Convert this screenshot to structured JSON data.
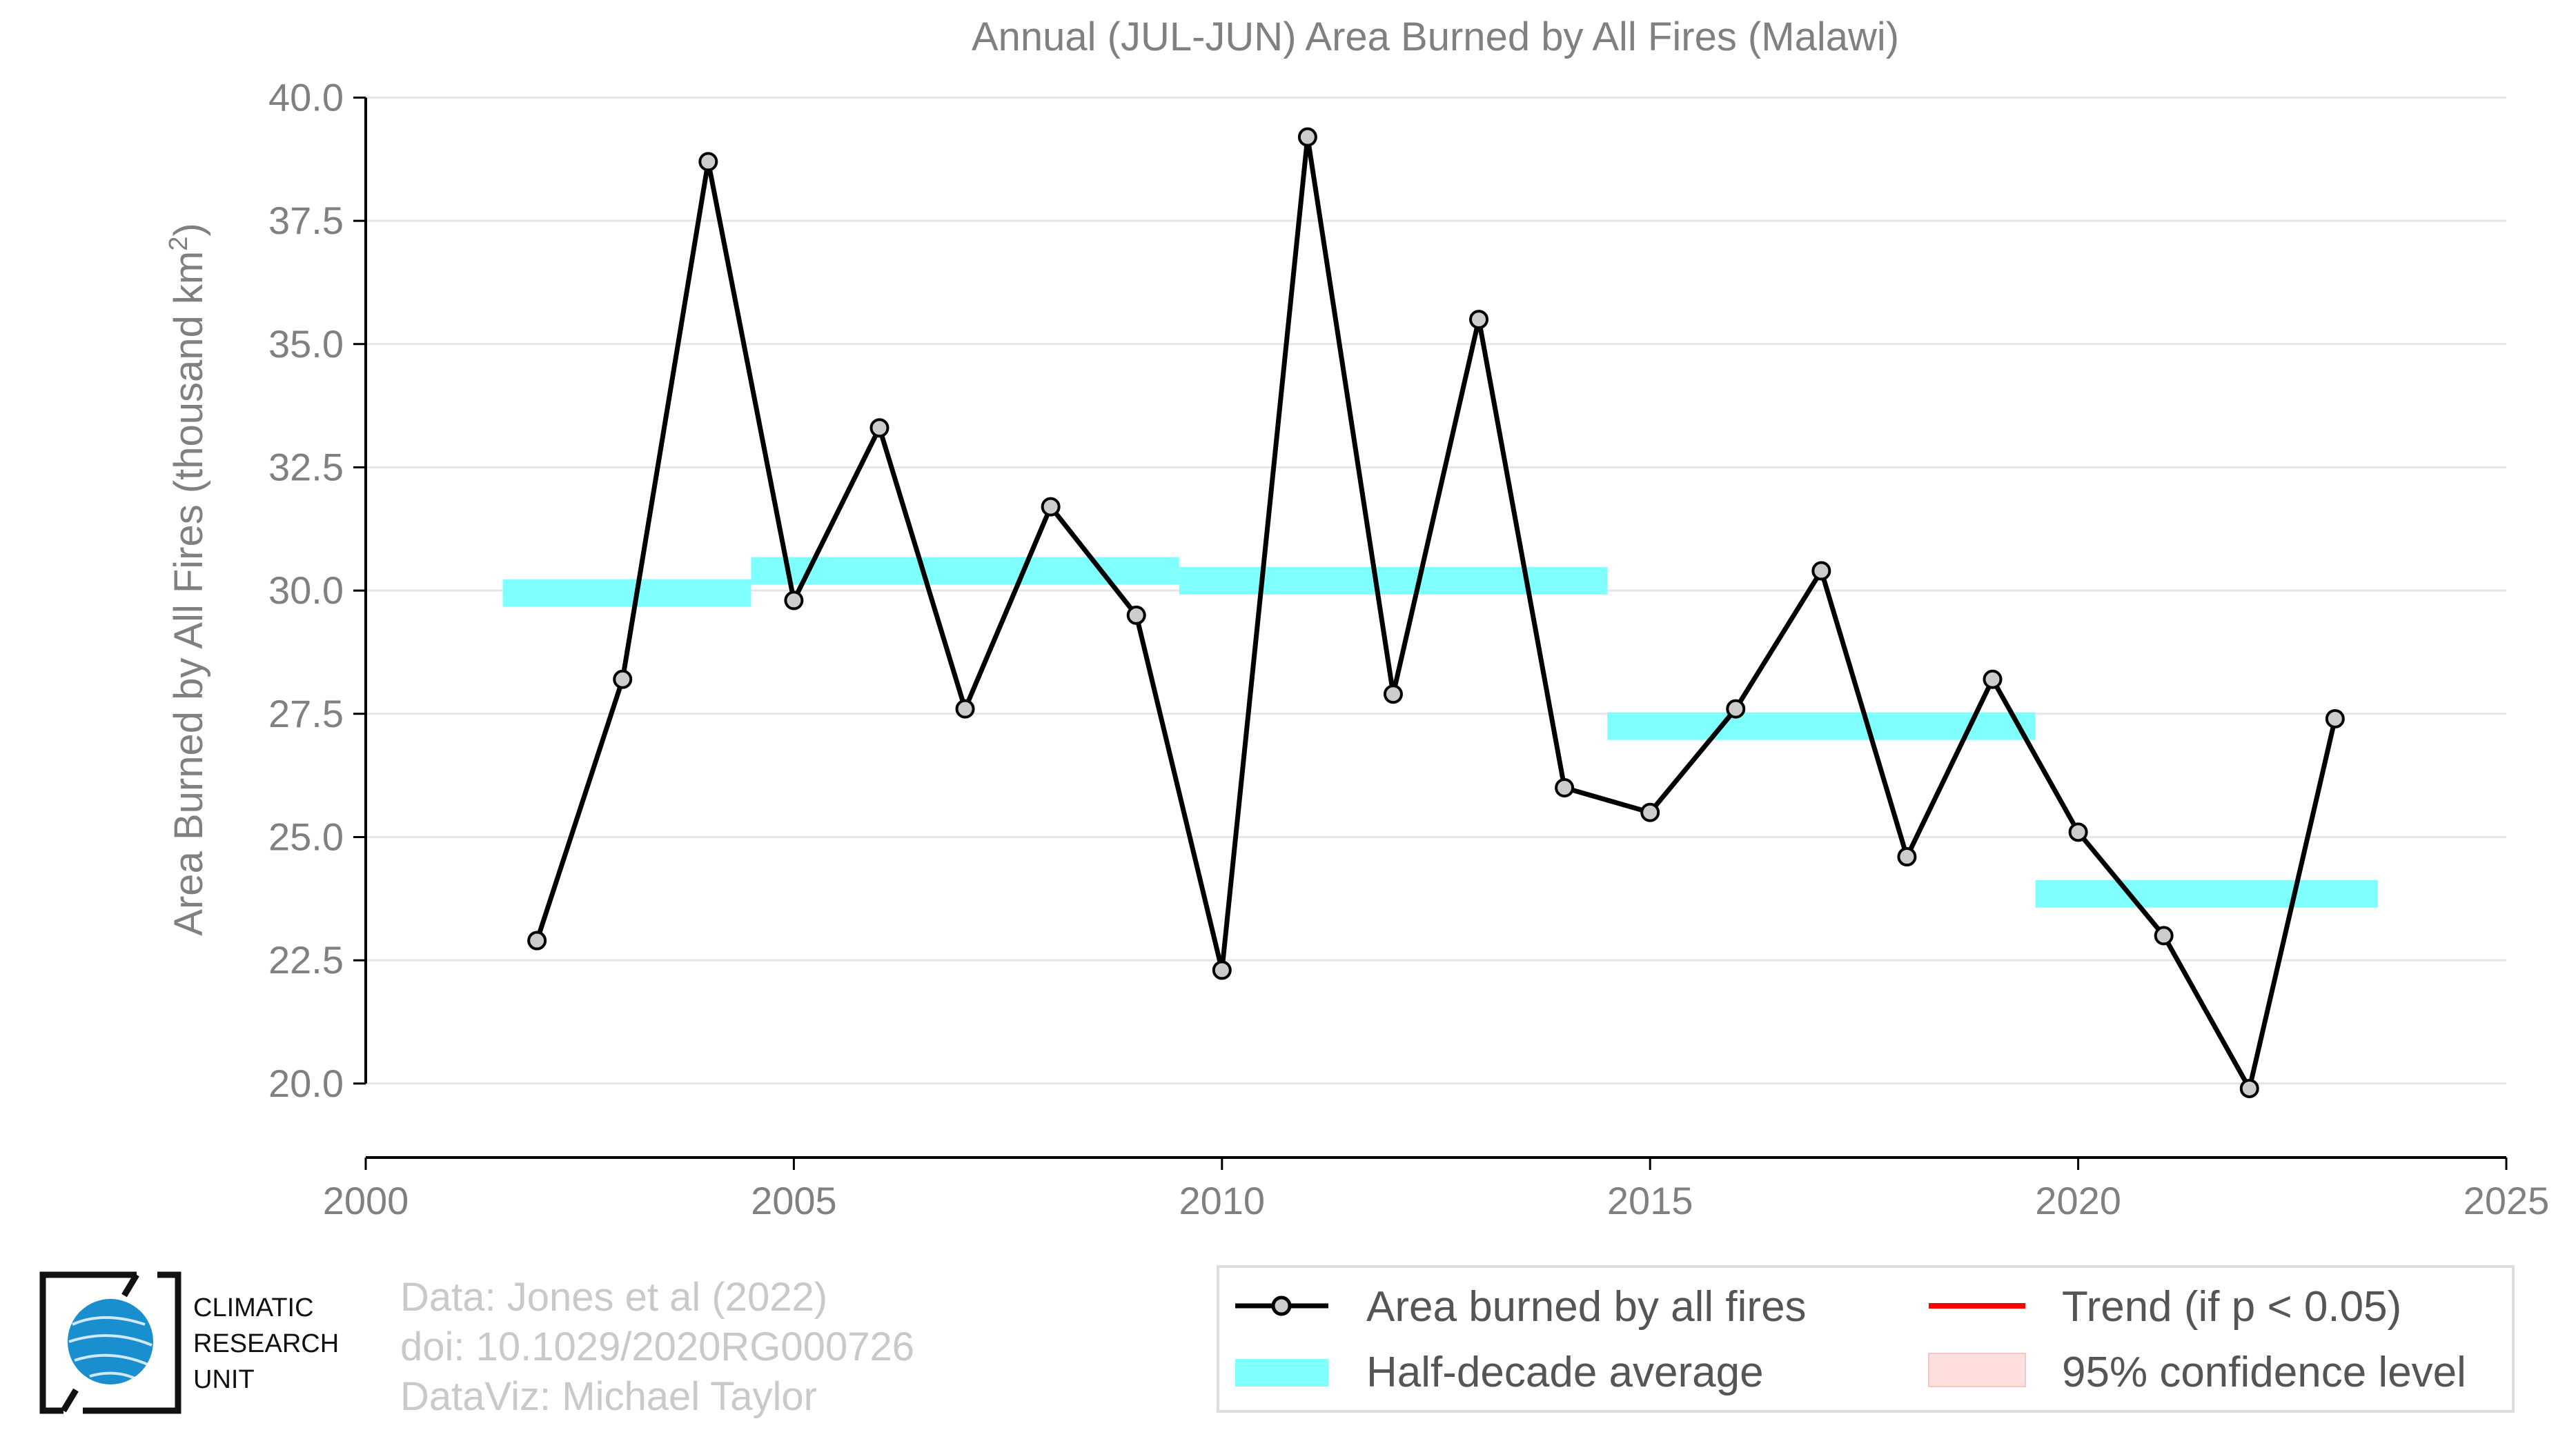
{
  "chart_data": {
    "type": "line",
    "title": "Annual (JUL-JUN) Area Burned by All Fires (Malawi)",
    "ylabel_main": "Area Burned by All Fires (thousand km",
    "ylabel_sup": "2",
    "ylabel_end": ")",
    "xlabel": "",
    "xlim": [
      2000,
      2025
    ],
    "ylim": [
      18.5,
      41.0
    ],
    "xticks": [
      2000,
      2005,
      2010,
      2015,
      2020,
      2025
    ],
    "yticks": [
      20.0,
      22.5,
      25.0,
      27.5,
      30.0,
      32.5,
      35.0,
      37.5,
      40.0
    ],
    "grid": "horizontal",
    "series": [
      {
        "name": "Area burned by all fires",
        "color": "#000000",
        "x": [
          2002,
          2003,
          2004,
          2005,
          2006,
          2007,
          2008,
          2009,
          2010,
          2011,
          2012,
          2013,
          2014,
          2015,
          2016,
          2017,
          2018,
          2019,
          2020,
          2021,
          2022,
          2023
        ],
        "y": [
          22.9,
          28.2,
          38.7,
          29.8,
          33.3,
          27.6,
          31.7,
          29.5,
          22.3,
          39.2,
          27.9,
          35.5,
          26.0,
          25.5,
          27.6,
          30.4,
          24.6,
          28.2,
          25.1,
          23.0,
          19.9,
          27.4
        ]
      }
    ],
    "half_decade_average": {
      "name": "Half-decade average",
      "color": "#80ffff",
      "segments": [
        {
          "x0": 2001.6,
          "x1": 2004.5,
          "y": 29.95
        },
        {
          "x0": 2004.5,
          "x1": 2009.5,
          "y": 30.4
        },
        {
          "x0": 2009.5,
          "x1": 2014.5,
          "y": 30.2
        },
        {
          "x0": 2014.5,
          "x1": 2019.5,
          "y": 27.25
        },
        {
          "x0": 2019.5,
          "x1": 2023.5,
          "y": 23.85
        }
      ]
    },
    "legend": {
      "placement": "bottom-right",
      "items": [
        {
          "label": "Area burned by all fires",
          "kind": "line-marker",
          "color": "#000000"
        },
        {
          "label": "Trend (if p < 0.05)",
          "kind": "line",
          "color": "#ff0000"
        },
        {
          "label": "Half-decade average",
          "kind": "band",
          "color": "#80ffff"
        },
        {
          "label": "95% confidence level",
          "kind": "band",
          "color": "#ffdede"
        }
      ]
    }
  },
  "credits": {
    "line1": "Data: Jones et al (2022)",
    "line2": "doi: 10.1029/2020RG000726",
    "line3": "DataViz: Michael Taylor"
  },
  "logo": {
    "line1": "CLIMATIC",
    "line2": "RESEARCH",
    "line3": "UNIT",
    "globe_color": "#1a8fd0"
  }
}
